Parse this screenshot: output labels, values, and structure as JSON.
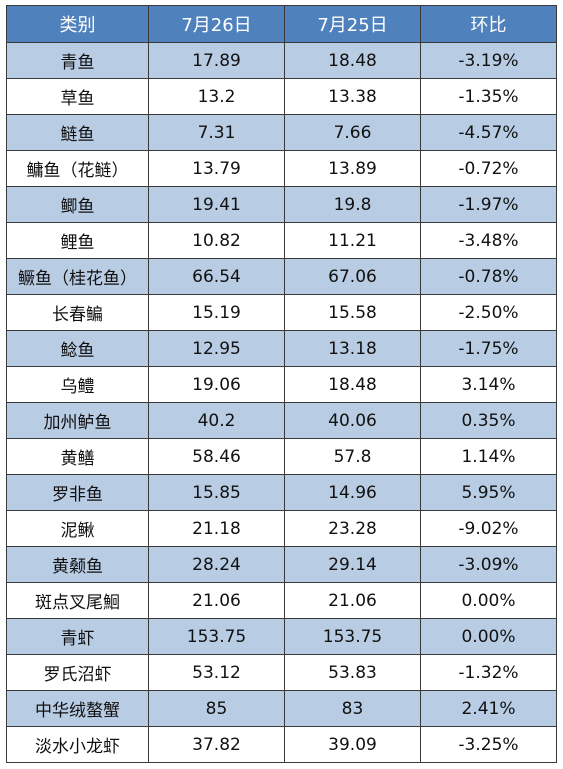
{
  "table": {
    "header": [
      "类别",
      "7月26日",
      "7月25日",
      "环比"
    ],
    "rows": [
      [
        "青鱼",
        "17.89",
        "18.48",
        "-3.19%"
      ],
      [
        "草鱼",
        "13.2",
        "13.38",
        "-1.35%"
      ],
      [
        "鲢鱼",
        "7.31",
        "7.66",
        "-4.57%"
      ],
      [
        "鳙鱼（花鲢）",
        "13.79",
        "13.89",
        "-0.72%"
      ],
      [
        "鲫鱼",
        "19.41",
        "19.8",
        "-1.97%"
      ],
      [
        "鲤鱼",
        "10.82",
        "11.21",
        "-3.48%"
      ],
      [
        "鳜鱼（桂花鱼）",
        "66.54",
        "67.06",
        "-0.78%"
      ],
      [
        "长春鳊",
        "15.19",
        "15.58",
        "-2.50%"
      ],
      [
        "鲶鱼",
        "12.95",
        "13.18",
        "-1.75%"
      ],
      [
        "乌鳢",
        "19.06",
        "18.48",
        "3.14%"
      ],
      [
        "加州鲈鱼",
        "40.2",
        "40.06",
        "0.35%"
      ],
      [
        "黄鳝",
        "58.46",
        "57.8",
        "1.14%"
      ],
      [
        "罗非鱼",
        "15.85",
        "14.96",
        "5.95%"
      ],
      [
        "泥鳅",
        "21.18",
        "23.28",
        "-9.02%"
      ],
      [
        "黄颡鱼",
        "28.24",
        "29.14",
        "-3.09%"
      ],
      [
        "斑点叉尾鮰",
        "21.06",
        "21.06",
        "0.00%"
      ],
      [
        "青虾",
        "153.75",
        "153.75",
        "0.00%"
      ],
      [
        "罗氏沼虾",
        "53.12",
        "53.83",
        "-1.32%"
      ],
      [
        "中华绒螯蟹",
        "85",
        "83",
        "2.41%"
      ],
      [
        "淡水小龙虾",
        "37.82",
        "39.09",
        "-3.25%"
      ]
    ]
  }
}
